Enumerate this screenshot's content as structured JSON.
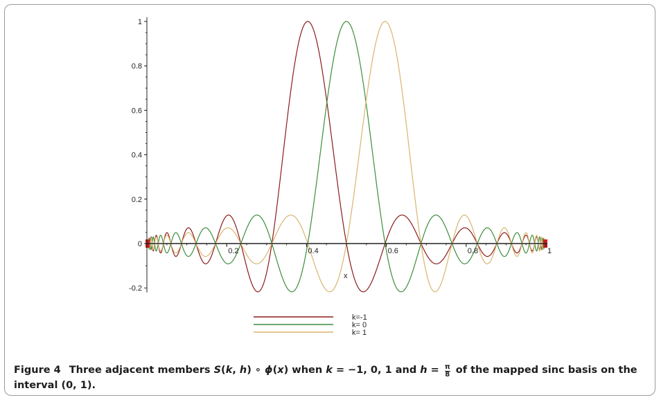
{
  "chart_data": {
    "type": "line",
    "title": "",
    "xlabel": "x",
    "ylabel": "",
    "xlim": [
      0,
      1
    ],
    "ylim": [
      -0.22,
      1.0
    ],
    "x_ticks": [
      "0.2",
      "0.4",
      "0.6",
      "0.8",
      "1"
    ],
    "y_ticks": [
      "-0.2",
      "0",
      "0.2",
      "0.4",
      "0.6",
      "0.8",
      "1"
    ],
    "grid": false,
    "legend_position": "bottom-center",
    "h": 0.3927,
    "series": [
      {
        "name": "k=-1",
        "k": -1,
        "color": "#8b1a1a"
      },
      {
        "name": "k= 0",
        "k": 0,
        "color": "#3c8c3c"
      },
      {
        "name": "k= 1",
        "k": 1,
        "color": "#d9b46e"
      }
    ]
  },
  "caption": {
    "figure_label": "Figure 4",
    "text_1": "Three adjacent members ",
    "S": "S",
    "k": "k",
    "h": "h",
    "phi": "ϕ",
    "x": "x",
    "text_when": "when ",
    "k_values": " = −1, 0, 1 and ",
    "h_eq": " = ",
    "pi": "π",
    "eight": "8",
    "text_2": " of the mapped sinc basis on the interval (0, 1)."
  }
}
